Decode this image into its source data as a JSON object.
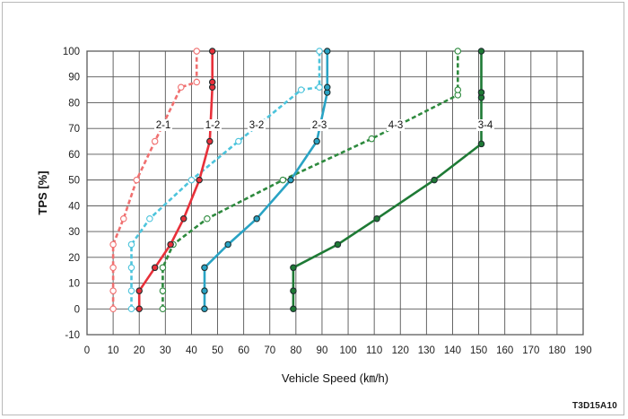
{
  "chart_data": {
    "type": "line",
    "xlabel": "Vehicle Speed (㎞/h)",
    "ylabel": "TPS [%]",
    "xlim": [
      0,
      190
    ],
    "ylim": [
      -10,
      100
    ],
    "xticks": [
      0,
      10,
      20,
      30,
      40,
      50,
      60,
      70,
      80,
      90,
      100,
      110,
      120,
      130,
      140,
      150,
      160,
      170,
      180,
      190
    ],
    "yticks": [
      -10,
      0,
      10,
      20,
      30,
      40,
      50,
      60,
      70,
      80,
      90,
      100
    ],
    "grid": true,
    "series": [
      {
        "name": "1-2",
        "line": "solid",
        "marker": "filled",
        "color": "#e8303a",
        "points": [
          [
            20,
            0
          ],
          [
            20,
            7
          ],
          [
            26,
            16
          ],
          [
            32,
            25
          ],
          [
            37,
            35
          ],
          [
            43,
            50
          ],
          [
            47,
            65
          ],
          [
            48,
            86
          ],
          [
            48,
            88
          ],
          [
            48,
            100
          ]
        ]
      },
      {
        "name": "2-1",
        "line": "dashed",
        "marker": "open",
        "color": "#f07070",
        "points": [
          [
            10,
            0
          ],
          [
            10,
            7
          ],
          [
            10,
            16
          ],
          [
            10,
            25
          ],
          [
            14,
            35
          ],
          [
            19,
            50
          ],
          [
            26,
            65
          ],
          [
            36,
            86
          ],
          [
            42,
            88
          ],
          [
            42,
            100
          ]
        ]
      },
      {
        "name": "2-3",
        "line": "solid",
        "marker": "filled",
        "color": "#29a3c4",
        "points": [
          [
            45,
            0
          ],
          [
            45,
            7
          ],
          [
            45,
            16
          ],
          [
            54,
            25
          ],
          [
            65,
            35
          ],
          [
            78,
            50
          ],
          [
            88,
            65
          ],
          [
            92,
            84
          ],
          [
            92,
            86
          ],
          [
            92,
            100
          ]
        ]
      },
      {
        "name": "3-2",
        "line": "dashed",
        "marker": "open",
        "color": "#4cc4dc",
        "points": [
          [
            17,
            0
          ],
          [
            17,
            7
          ],
          [
            17,
            16
          ],
          [
            17,
            25
          ],
          [
            24,
            35
          ],
          [
            40,
            50
          ],
          [
            58,
            65
          ],
          [
            82,
            85
          ],
          [
            89,
            86
          ],
          [
            89,
            100
          ]
        ]
      },
      {
        "name": "3-4",
        "line": "solid",
        "marker": "filled",
        "color": "#1e7a35",
        "points": [
          [
            79,
            0
          ],
          [
            79,
            7
          ],
          [
            79,
            16
          ],
          [
            96,
            25
          ],
          [
            111,
            35
          ],
          [
            133,
            50
          ],
          [
            151,
            64
          ],
          [
            151,
            82
          ],
          [
            151,
            84
          ],
          [
            151,
            100
          ]
        ]
      },
      {
        "name": "4-3",
        "line": "dashed",
        "marker": "open",
        "color": "#2e8a3e",
        "points": [
          [
            29,
            0
          ],
          [
            29,
            7
          ],
          [
            29,
            16
          ],
          [
            33,
            25
          ],
          [
            46,
            35
          ],
          [
            75,
            50
          ],
          [
            109,
            66
          ],
          [
            142,
            83
          ],
          [
            142,
            85
          ],
          [
            142,
            100
          ]
        ]
      }
    ],
    "annotations": [
      "2-1",
      "1-2",
      "3-2",
      "2-3",
      "4-3",
      "3-4"
    ]
  },
  "footer": {
    "code": "T3D15A10"
  }
}
